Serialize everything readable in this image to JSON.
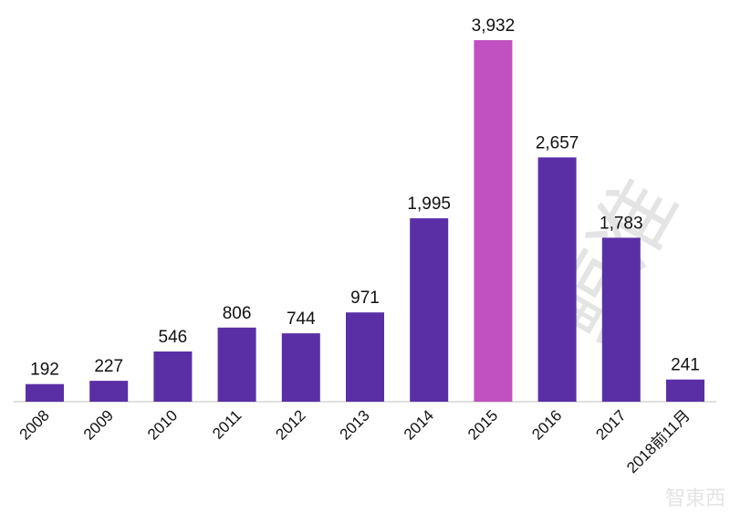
{
  "chart_data": {
    "type": "bar",
    "categories": [
      "2008",
      "2009",
      "2010",
      "2011",
      "2012",
      "2013",
      "2014",
      "2015",
      "2016",
      "2017",
      "2018前11月"
    ],
    "values": [
      192,
      227,
      546,
      806,
      744,
      971,
      1995,
      3932,
      2657,
      1783,
      241
    ],
    "data_labels": [
      "192",
      "227",
      "546",
      "806",
      "744",
      "971",
      "1,995",
      "3,932",
      "2,657",
      "1,783",
      "241"
    ],
    "highlight_index": 7,
    "colors": {
      "bar": "#5a2fa6",
      "highlight": "#c150c0",
      "axis": "#bfbfbf"
    },
    "ylim": [
      0,
      3932
    ],
    "grid": false,
    "legend": "none",
    "title": "",
    "xlabel": "",
    "ylabel": ""
  },
  "watermark": {
    "side_text": "鲸准",
    "corner_text": "智東西"
  }
}
